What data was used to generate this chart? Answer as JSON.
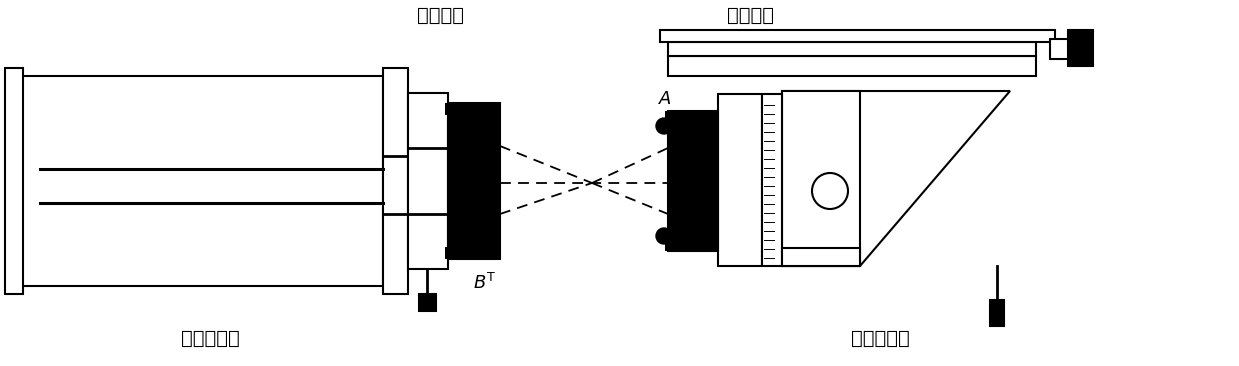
{
  "bg_color": "#ffffff",
  "line_color": "#000000",
  "label_fizeau": "斐索干涉仪",
  "label_transmission": "透射球面",
  "label_reflection": "反射球面",
  "label_sixaxis": "六维调整架",
  "figsize": [
    12.39,
    3.66
  ],
  "dpi": 100
}
